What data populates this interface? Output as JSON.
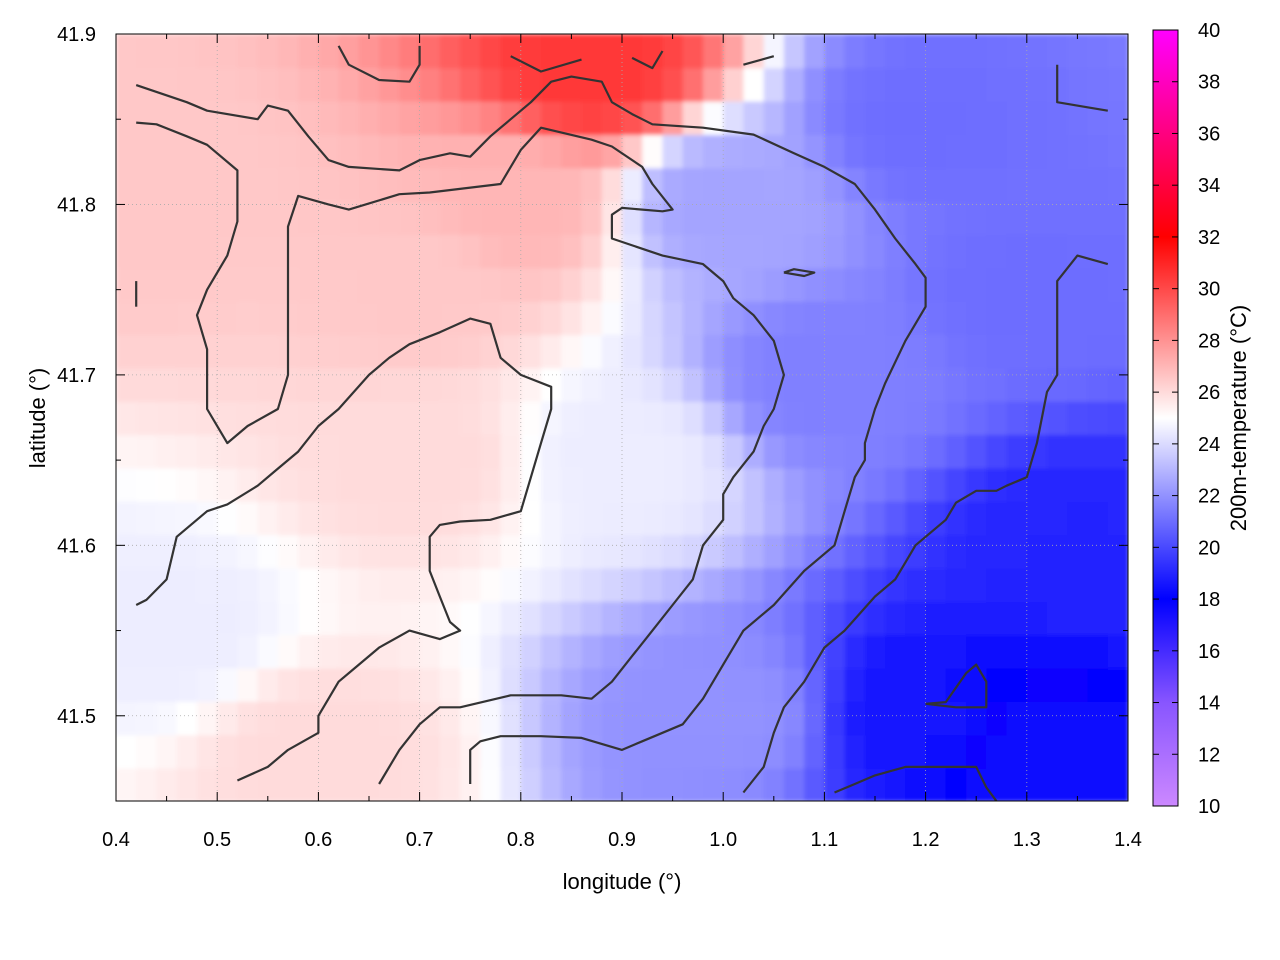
{
  "chart_data": {
    "type": "heatmap",
    "title": "",
    "xlabel": "longitude (°)",
    "ylabel": "latitude (°)",
    "colorbar_label": "200m-temperature (°C)",
    "xlim": [
      0.4,
      1.4
    ],
    "ylim": [
      41.45,
      41.9
    ],
    "clim": [
      10,
      40
    ],
    "x_ticks": [
      0.4,
      0.5,
      0.6,
      0.7,
      0.8,
      0.9,
      1.0,
      1.1,
      1.2,
      1.3,
      1.4
    ],
    "x_tick_labels": [
      "0.4",
      "0.5",
      "0.6",
      "0.7",
      "0.8",
      "0.9",
      "1.0",
      "1.1",
      "1.2",
      "1.3",
      "1.4"
    ],
    "y_ticks": [
      41.5,
      41.6,
      41.7,
      41.8,
      41.9
    ],
    "y_tick_labels": [
      "41.5",
      "41.6",
      "41.7",
      "41.8",
      "41.9"
    ],
    "colorbar_ticks": [
      10,
      12,
      14,
      16,
      18,
      20,
      22,
      24,
      26,
      28,
      30,
      32,
      34,
      36,
      38,
      40
    ],
    "colorbar_tick_labels": [
      "10",
      "12",
      "14",
      "16",
      "18",
      "20",
      "22",
      "24",
      "26",
      "28",
      "30",
      "32",
      "34",
      "36",
      "38",
      "40"
    ],
    "colormap_stops": [
      {
        "value": 10,
        "color": "#cc88ff"
      },
      {
        "value": 14,
        "color": "#8855ff"
      },
      {
        "value": 18,
        "color": "#0000ff"
      },
      {
        "value": 25,
        "color": "#ffffff"
      },
      {
        "value": 32,
        "color": "#ff0000"
      },
      {
        "value": 40,
        "color": "#ff00ff"
      }
    ],
    "grid": true,
    "field_estimates": [
      {
        "lon": 0.45,
        "lat": 41.8,
        "temp": 26.5
      },
      {
        "lon": 0.7,
        "lat": 41.75,
        "temp": 26.5
      },
      {
        "lon": 0.8,
        "lat": 41.8,
        "temp": 27.0
      },
      {
        "lon": 0.87,
        "lat": 41.88,
        "temp": 30.5
      },
      {
        "lon": 0.7,
        "lat": 41.65,
        "temp": 26.0
      },
      {
        "lon": 0.45,
        "lat": 41.55,
        "temp": 24.5
      },
      {
        "lon": 0.6,
        "lat": 41.48,
        "temp": 26.0
      },
      {
        "lon": 0.9,
        "lat": 41.65,
        "temp": 24.5
      },
      {
        "lon": 1.0,
        "lat": 41.8,
        "temp": 22.5
      },
      {
        "lon": 1.1,
        "lat": 41.7,
        "temp": 21.5
      },
      {
        "lon": 1.2,
        "lat": 41.85,
        "temp": 21.0
      },
      {
        "lon": 1.3,
        "lat": 41.75,
        "temp": 21.0
      },
      {
        "lon": 1.35,
        "lat": 41.6,
        "temp": 19.0
      },
      {
        "lon": 1.2,
        "lat": 41.5,
        "temp": 18.5
      },
      {
        "lon": 1.3,
        "lat": 41.48,
        "temp": 17.5
      },
      {
        "lon": 1.0,
        "lat": 41.5,
        "temp": 22.0
      }
    ],
    "contour_lines": [
      {
        "points": [
          [
            0.42,
            41.87
          ],
          [
            0.47,
            41.86
          ],
          [
            0.49,
            41.855
          ],
          [
            0.54,
            41.85
          ],
          [
            0.55,
            41.858
          ],
          [
            0.57,
            41.855
          ],
          [
            0.59,
            41.84
          ],
          [
            0.61,
            41.826
          ],
          [
            0.63,
            41.822
          ],
          [
            0.68,
            41.82
          ],
          [
            0.7,
            41.826
          ],
          [
            0.73,
            41.83
          ],
          [
            0.75,
            41.828
          ],
          [
            0.77,
            41.84
          ],
          [
            0.79,
            41.85
          ],
          [
            0.81,
            41.86
          ],
          [
            0.83,
            41.872
          ],
          [
            0.85,
            41.875
          ],
          [
            0.88,
            41.872
          ],
          [
            0.89,
            41.86
          ],
          [
            0.91,
            41.853
          ],
          [
            0.93,
            41.847
          ],
          [
            0.98,
            41.845
          ],
          [
            1.03,
            41.841
          ],
          [
            1.07,
            41.83
          ],
          [
            1.1,
            41.822
          ],
          [
            1.13,
            41.812
          ],
          [
            1.15,
            41.797
          ],
          [
            1.17,
            41.78
          ],
          [
            1.19,
            41.765
          ],
          [
            1.2,
            41.757
          ],
          [
            1.2,
            41.74
          ],
          [
            1.18,
            41.72
          ],
          [
            1.16,
            41.695
          ],
          [
            1.15,
            41.68
          ],
          [
            1.14,
            41.66
          ],
          [
            1.14,
            41.65
          ],
          [
            1.13,
            41.64
          ],
          [
            1.12,
            41.62
          ],
          [
            1.11,
            41.6
          ],
          [
            1.08,
            41.585
          ],
          [
            1.05,
            41.565
          ],
          [
            1.02,
            41.55
          ],
          [
            1.0,
            41.53
          ],
          [
            0.98,
            41.51
          ],
          [
            0.96,
            41.495
          ],
          [
            0.94,
            41.49
          ],
          [
            0.92,
            41.485
          ],
          [
            0.9,
            41.48
          ],
          [
            0.86,
            41.487
          ],
          [
            0.82,
            41.488
          ],
          [
            0.78,
            41.488
          ],
          [
            0.76,
            41.485
          ],
          [
            0.75,
            41.48
          ],
          [
            0.75,
            41.46
          ]
        ]
      },
      {
        "points": [
          [
            0.42,
            41.848
          ],
          [
            0.44,
            41.847
          ],
          [
            0.47,
            41.84
          ],
          [
            0.49,
            41.835
          ],
          [
            0.52,
            41.82
          ],
          [
            0.52,
            41.806
          ],
          [
            0.52,
            41.79
          ],
          [
            0.51,
            41.77
          ],
          [
            0.49,
            41.75
          ],
          [
            0.48,
            41.735
          ],
          [
            0.49,
            41.715
          ],
          [
            0.49,
            41.7
          ],
          [
            0.49,
            41.695
          ],
          [
            0.49,
            41.68
          ],
          [
            0.51,
            41.66
          ],
          [
            0.53,
            41.67
          ],
          [
            0.56,
            41.68
          ],
          [
            0.57,
            41.7
          ],
          [
            0.57,
            41.713
          ],
          [
            0.57,
            41.75
          ],
          [
            0.57,
            41.787
          ],
          [
            0.58,
            41.805
          ],
          [
            0.61,
            41.8
          ],
          [
            0.63,
            41.797
          ],
          [
            0.68,
            41.806
          ],
          [
            0.71,
            41.807
          ],
          [
            0.78,
            41.812
          ],
          [
            0.8,
            41.832
          ],
          [
            0.82,
            41.845
          ],
          [
            0.87,
            41.838
          ],
          [
            0.89,
            41.834
          ],
          [
            0.92,
            41.822
          ],
          [
            0.93,
            41.812
          ],
          [
            0.95,
            41.797
          ],
          [
            0.94,
            41.796
          ],
          [
            0.9,
            41.798
          ],
          [
            0.89,
            41.794
          ],
          [
            0.89,
            41.78
          ],
          [
            0.94,
            41.77
          ],
          [
            0.98,
            41.765
          ],
          [
            1.0,
            41.755
          ],
          [
            1.01,
            41.745
          ],
          [
            1.03,
            41.735
          ],
          [
            1.05,
            41.72
          ],
          [
            1.06,
            41.7
          ],
          [
            1.05,
            41.68
          ],
          [
            1.04,
            41.67
          ],
          [
            1.03,
            41.655
          ],
          [
            1.01,
            41.64
          ],
          [
            1.0,
            41.63
          ],
          [
            1.0,
            41.615
          ],
          [
            0.98,
            41.6
          ],
          [
            0.97,
            41.58
          ],
          [
            0.95,
            41.565
          ],
          [
            0.93,
            41.55
          ],
          [
            0.91,
            41.535
          ],
          [
            0.89,
            41.52
          ],
          [
            0.87,
            41.51
          ],
          [
            0.84,
            41.512
          ],
          [
            0.79,
            41.512
          ],
          [
            0.74,
            41.505
          ],
          [
            0.72,
            41.505
          ],
          [
            0.7,
            41.495
          ],
          [
            0.68,
            41.48
          ],
          [
            0.66,
            41.46
          ]
        ]
      },
      {
        "points": [
          [
            0.42,
            41.565
          ],
          [
            0.43,
            41.568
          ],
          [
            0.45,
            41.58
          ],
          [
            0.46,
            41.605
          ],
          [
            0.49,
            41.62
          ],
          [
            0.51,
            41.624
          ],
          [
            0.54,
            41.635
          ],
          [
            0.56,
            41.645
          ],
          [
            0.58,
            41.655
          ],
          [
            0.6,
            41.67
          ],
          [
            0.62,
            41.68
          ],
          [
            0.65,
            41.7
          ],
          [
            0.67,
            41.71
          ],
          [
            0.69,
            41.718
          ],
          [
            0.72,
            41.725
          ],
          [
            0.75,
            41.733
          ],
          [
            0.77,
            41.73
          ],
          [
            0.78,
            41.71
          ],
          [
            0.8,
            41.7
          ],
          [
            0.83,
            41.693
          ],
          [
            0.83,
            41.68
          ],
          [
            0.82,
            41.66
          ],
          [
            0.81,
            41.64
          ],
          [
            0.8,
            41.62
          ],
          [
            0.77,
            41.615
          ],
          [
            0.74,
            41.614
          ],
          [
            0.72,
            41.612
          ],
          [
            0.71,
            41.605
          ],
          [
            0.71,
            41.585
          ],
          [
            0.72,
            41.57
          ],
          [
            0.73,
            41.555
          ],
          [
            0.74,
            41.55
          ],
          [
            0.72,
            41.545
          ],
          [
            0.69,
            41.55
          ],
          [
            0.66,
            41.54
          ],
          [
            0.64,
            41.53
          ],
          [
            0.62,
            41.52
          ],
          [
            0.6,
            41.5
          ],
          [
            0.6,
            41.49
          ],
          [
            0.57,
            41.48
          ],
          [
            0.55,
            41.47
          ],
          [
            0.52,
            41.462
          ]
        ]
      },
      {
        "points": [
          [
            1.02,
            41.455
          ],
          [
            1.04,
            41.47
          ],
          [
            1.05,
            41.49
          ],
          [
            1.06,
            41.505
          ],
          [
            1.08,
            41.52
          ],
          [
            1.1,
            41.54
          ],
          [
            1.12,
            41.55
          ],
          [
            1.15,
            41.57
          ],
          [
            1.17,
            41.58
          ],
          [
            1.18,
            41.59
          ],
          [
            1.19,
            41.6
          ],
          [
            1.2,
            41.605
          ],
          [
            1.21,
            41.61
          ],
          [
            1.22,
            41.615
          ],
          [
            1.23,
            41.625
          ],
          [
            1.25,
            41.632
          ],
          [
            1.27,
            41.632
          ],
          [
            1.28,
            41.635
          ],
          [
            1.3,
            41.64
          ],
          [
            1.31,
            41.66
          ],
          [
            1.32,
            41.69
          ],
          [
            1.33,
            41.7
          ],
          [
            1.33,
            41.72
          ],
          [
            1.33,
            41.755
          ],
          [
            1.35,
            41.77
          ],
          [
            1.38,
            41.765
          ]
        ]
      },
      {
        "points": [
          [
            1.11,
            41.455
          ],
          [
            1.13,
            41.46
          ],
          [
            1.15,
            41.465
          ],
          [
            1.18,
            41.47
          ],
          [
            1.22,
            41.47
          ],
          [
            1.25,
            41.47
          ],
          [
            1.26,
            41.458
          ],
          [
            1.27,
            41.45
          ]
        ]
      },
      {
        "points": [
          [
            1.33,
            41.882
          ],
          [
            1.33,
            41.86
          ],
          [
            1.36,
            41.857
          ],
          [
            1.38,
            41.855
          ]
        ]
      },
      {
        "points": [
          [
            0.62,
            41.893
          ],
          [
            0.63,
            41.882
          ],
          [
            0.66,
            41.873
          ],
          [
            0.69,
            41.872
          ],
          [
            0.7,
            41.882
          ],
          [
            0.7,
            41.893
          ]
        ]
      },
      {
        "points": [
          [
            0.79,
            41.887
          ],
          [
            0.82,
            41.878
          ],
          [
            0.86,
            41.885
          ]
        ]
      },
      {
        "points": [
          [
            0.91,
            41.886
          ],
          [
            0.93,
            41.88
          ],
          [
            0.94,
            41.89
          ]
        ]
      },
      {
        "points": [
          [
            1.02,
            41.882
          ],
          [
            1.05,
            41.887
          ]
        ]
      },
      {
        "points": [
          [
            0.42,
            41.755
          ],
          [
            0.42,
            41.748
          ],
          [
            0.42,
            41.74
          ]
        ]
      },
      {
        "points": [
          [
            1.06,
            41.76
          ],
          [
            1.07,
            41.762
          ],
          [
            1.09,
            41.76
          ],
          [
            1.08,
            41.758
          ],
          [
            1.06,
            41.76
          ]
        ]
      },
      {
        "points": [
          [
            1.2,
            41.507
          ],
          [
            1.22,
            41.508
          ],
          [
            1.24,
            41.525
          ],
          [
            1.25,
            41.53
          ],
          [
            1.26,
            41.52
          ],
          [
            1.26,
            41.505
          ],
          [
            1.23,
            41.505
          ],
          [
            1.2,
            41.507
          ]
        ]
      }
    ]
  }
}
